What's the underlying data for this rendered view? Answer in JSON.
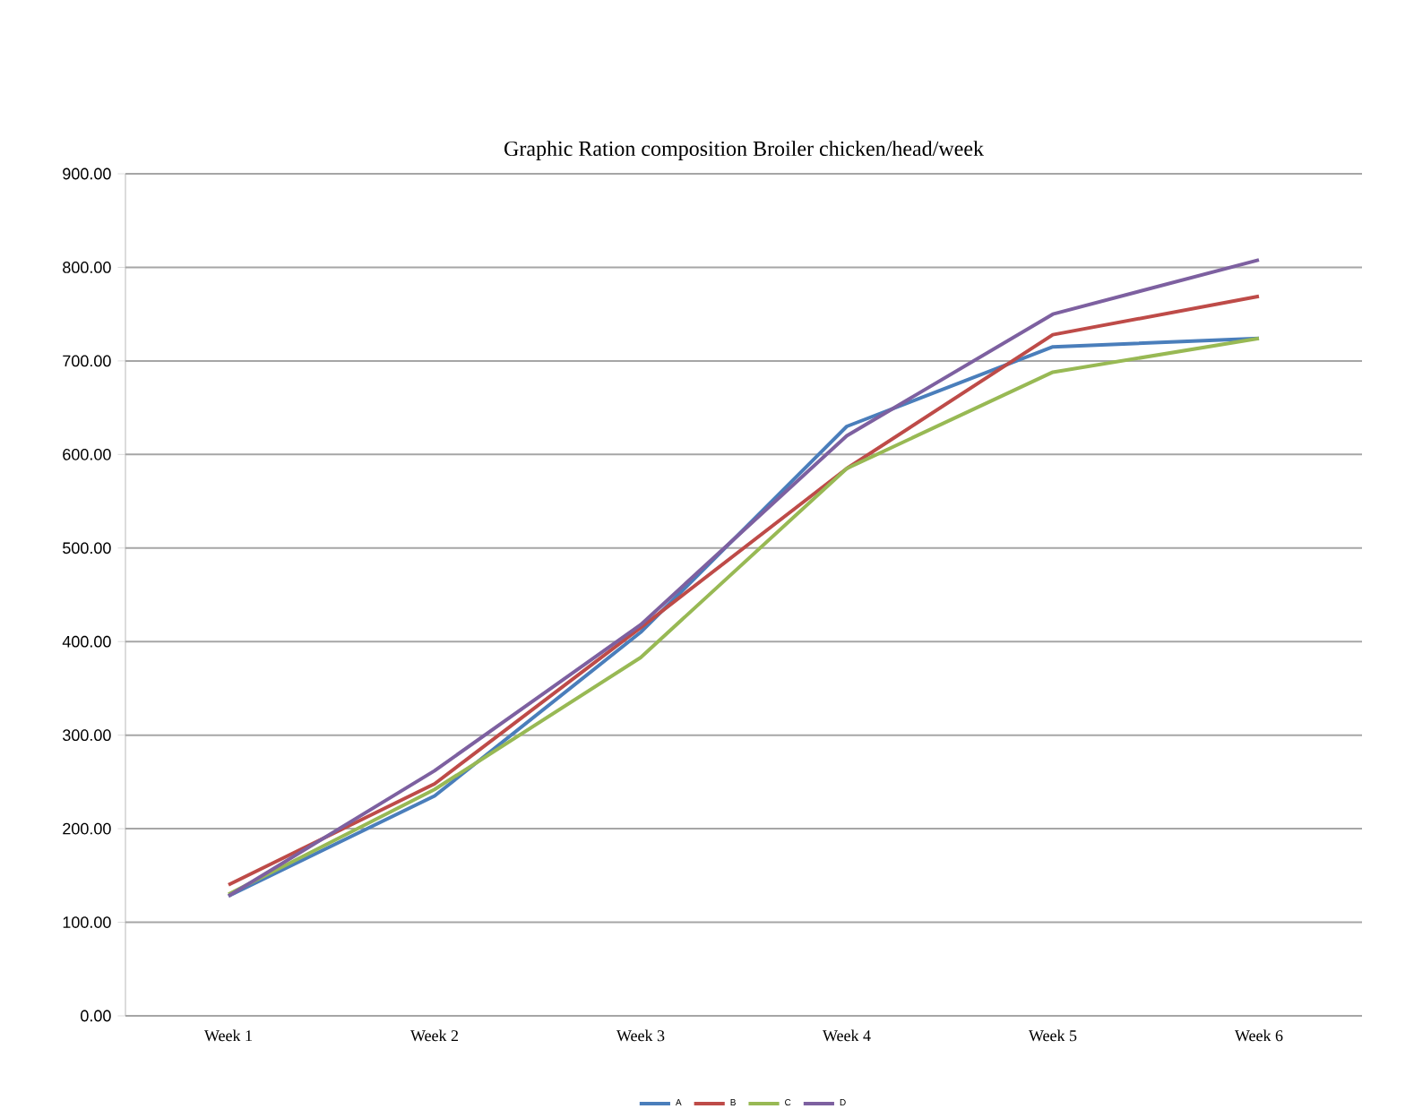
{
  "chart_data": {
    "type": "line",
    "title": "Graphic Ration composition Broiler chicken/head/week",
    "categories": [
      "Week 1",
      "Week 2",
      "Week 3",
      "Week 4",
      "Week 5",
      "Week 6"
    ],
    "series": [
      {
        "name": "A",
        "color": "#4a7ebb",
        "values": [
          128,
          235,
          410,
          630,
          715,
          724
        ]
      },
      {
        "name": "B",
        "color": "#be4b48",
        "values": [
          140,
          248,
          415,
          585,
          728,
          769
        ]
      },
      {
        "name": "C",
        "color": "#98b954",
        "values": [
          130,
          242,
          383,
          585,
          688,
          724
        ]
      },
      {
        "name": "D",
        "color": "#7d60a0",
        "values": [
          128,
          262,
          418,
          620,
          750,
          808
        ]
      }
    ],
    "ylim": [
      0,
      900
    ],
    "yticks": [
      {
        "value": 0,
        "label": "0.00"
      },
      {
        "value": 100,
        "label": "100.00"
      },
      {
        "value": 200,
        "label": "200.00"
      },
      {
        "value": 300,
        "label": "300.00"
      },
      {
        "value": 400,
        "label": "400.00"
      },
      {
        "value": 500,
        "label": "500.00"
      },
      {
        "value": 600,
        "label": "600.00"
      },
      {
        "value": 700,
        "label": "700.00"
      },
      {
        "value": 800,
        "label": "800.00"
      },
      {
        "value": 900,
        "label": "900.00"
      }
    ],
    "grid": "y",
    "legend": "bottom",
    "marker": "none",
    "line_style": "solid"
  }
}
